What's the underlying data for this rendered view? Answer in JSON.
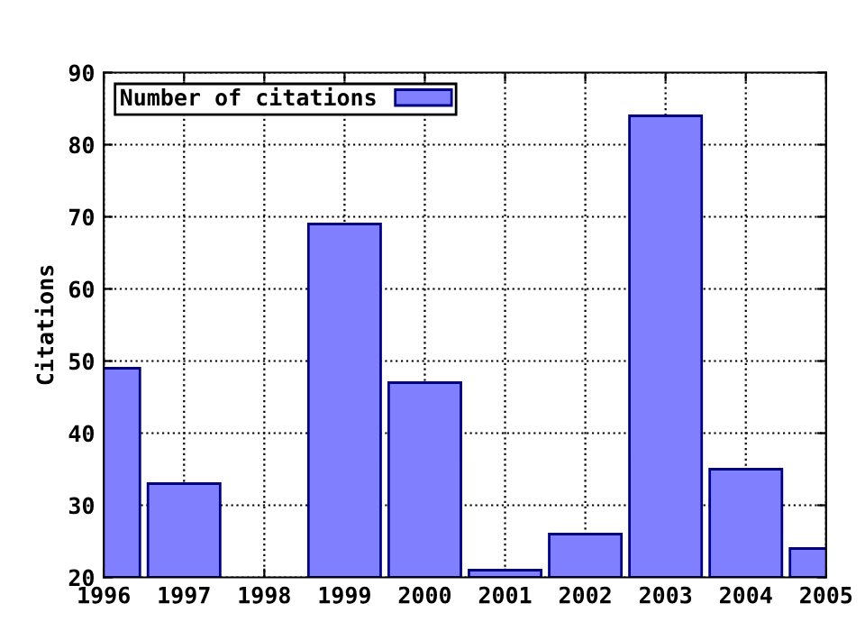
{
  "chart_data": {
    "type": "bar",
    "ylabel": "Citations",
    "x": [
      1996,
      1997,
      1998,
      1999,
      2000,
      2001,
      2002,
      2003,
      2004,
      2005
    ],
    "series": [
      {
        "name": "Number of citations",
        "color": "#8080ff",
        "values": [
          49,
          33,
          null,
          69,
          47,
          21,
          26,
          84,
          35,
          24
        ]
      }
    ],
    "xlim": [
      1996,
      2005
    ],
    "xticks": [
      1996,
      1997,
      1998,
      1999,
      2000,
      2001,
      2002,
      2003,
      2004,
      2005
    ],
    "ylim": [
      20,
      90
    ],
    "yticks": [
      20,
      30,
      40,
      50,
      60,
      70,
      80,
      90
    ],
    "grid": true,
    "legend": "top left",
    "line_style": "dotted"
  }
}
